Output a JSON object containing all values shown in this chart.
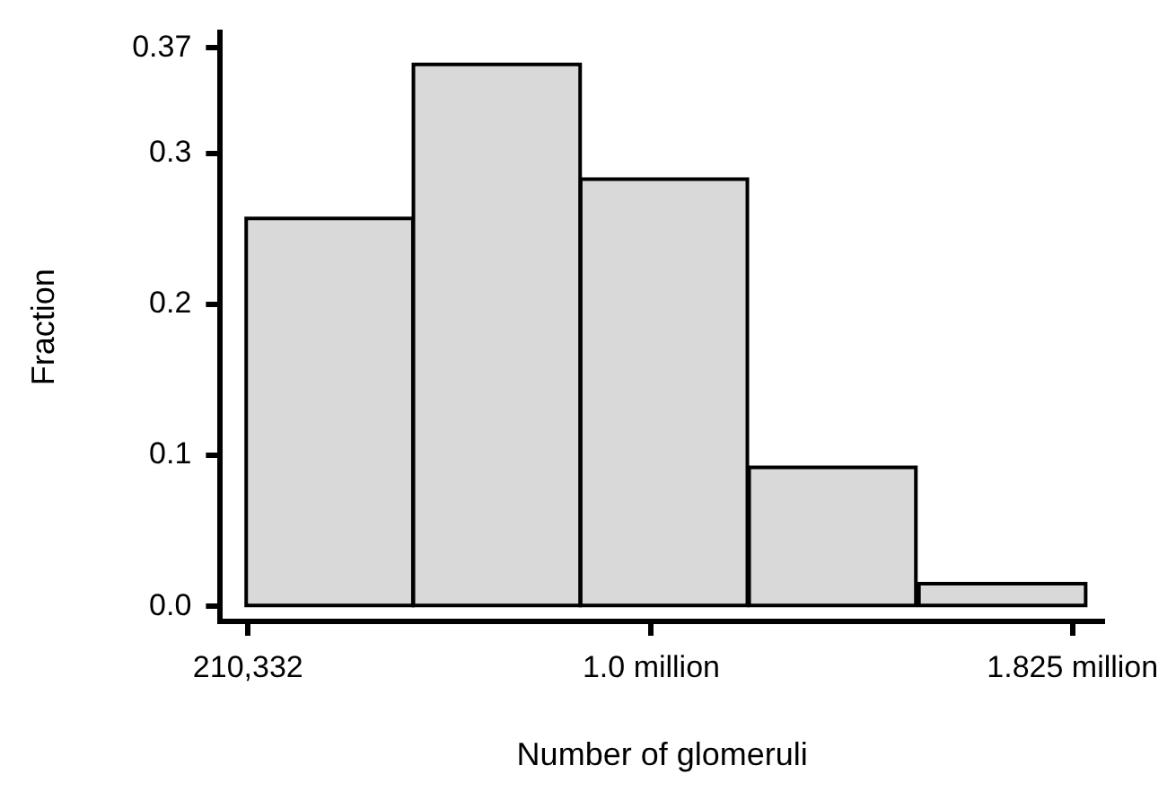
{
  "chart_data": {
    "type": "histogram",
    "xlabel": "Number of glomeruli",
    "ylabel": "Fraction",
    "bins": [
      205000,
      535000,
      860000,
      1190000,
      1520000,
      1855000
    ],
    "values": [
      0.257,
      0.359,
      0.283,
      0.092,
      0.015
    ],
    "color": "#d9d9d9",
    "xlim": [
      156000,
      1887000
    ],
    "xticks": [
      {
        "value": 210332,
        "label": "210,332"
      },
      {
        "value": 1000000,
        "label": "1.0 million"
      },
      {
        "value": 1825000,
        "label": "1.825 million"
      }
    ],
    "ylim": [
      -0.01,
      0.38
    ],
    "yticks": [
      {
        "value": 0,
        "label": "0.0"
      },
      0.1,
      0.2,
      0.3,
      0.37
    ],
    "grid": false,
    "legend": false
  }
}
